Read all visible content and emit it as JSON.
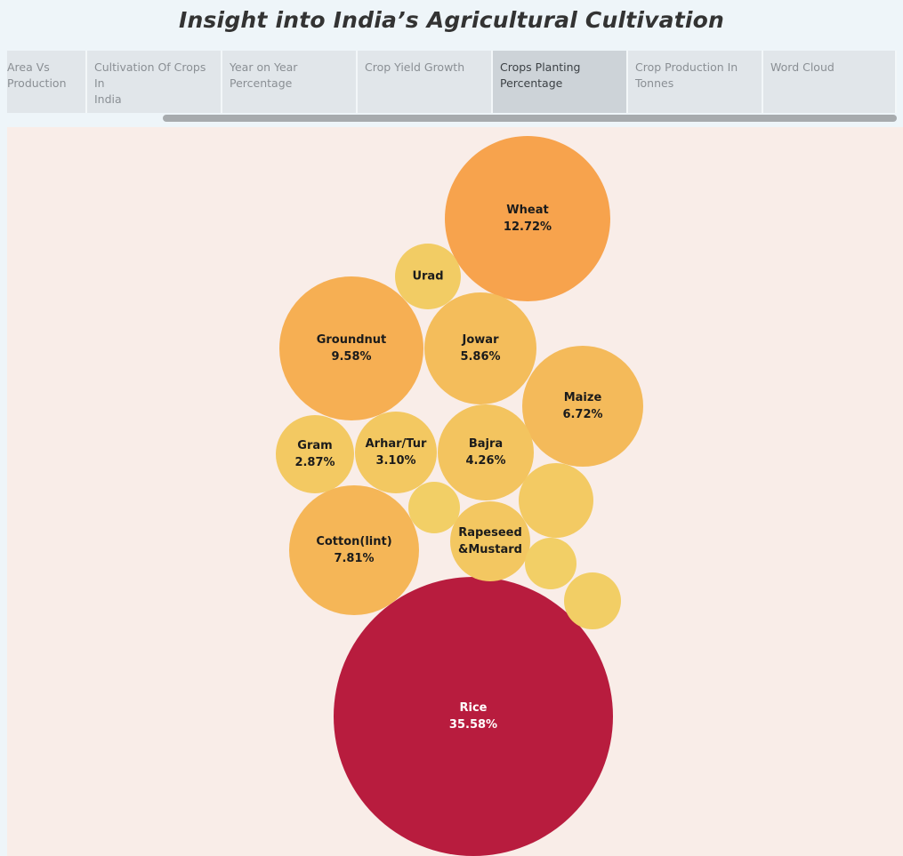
{
  "page": {
    "title": "Insight into India’s Agricultural Cultivation"
  },
  "tabs": [
    {
      "label": "Area Vs Production",
      "lines": [
        "Area Vs",
        "Production"
      ],
      "active": false
    },
    {
      "label": "Cultivation Of Crops In India",
      "lines": [
        "Cultivation Of Crops In",
        "India"
      ],
      "active": false
    },
    {
      "label": "Year on Year Percentage",
      "lines": [
        "Year on Year",
        "Percentage"
      ],
      "active": false
    },
    {
      "label": "Crop Yield Growth",
      "lines": [
        "Crop Yield Growth"
      ],
      "active": false
    },
    {
      "label": "Crops Planting Percentage",
      "lines": [
        "Crops Planting",
        "Percentage"
      ],
      "active": true
    },
    {
      "label": "Crop Production In Tonnes",
      "lines": [
        "Crop Production In",
        "Tonnes"
      ],
      "active": false
    },
    {
      "label": "Word Cloud",
      "lines": [
        "Word Cloud"
      ],
      "active": false
    }
  ],
  "chart_data": {
    "type": "bubble",
    "title": "",
    "color_scale": {
      "low": "#f2d066",
      "mid": "#f7a24c",
      "high": "#b81c3e"
    },
    "items": [
      {
        "name": "Rice",
        "value": 35.58,
        "label": "35.58%"
      },
      {
        "name": "Wheat",
        "value": 12.72,
        "label": "12.72%"
      },
      {
        "name": "Groundnut",
        "value": 9.58,
        "label": "9.58%"
      },
      {
        "name": "Cotton(lint)",
        "value": 7.81,
        "label": "7.81%"
      },
      {
        "name": "Maize",
        "value": 6.72,
        "label": "6.72%"
      },
      {
        "name": "Jowar",
        "value": 5.86,
        "label": "5.86%"
      },
      {
        "name": "Bajra",
        "value": 4.26,
        "label": "4.26%"
      },
      {
        "name": "Rapeseed &Mustard",
        "lines": [
          "Rapeseed",
          "&Mustard"
        ],
        "value": 3.3,
        "label": ""
      },
      {
        "name": "Arhar/Tur",
        "value": 3.1,
        "label": "3.10%"
      },
      {
        "name": "Gram",
        "value": 2.87,
        "label": "2.87%"
      },
      {
        "name": "",
        "value": 2.6,
        "label": ""
      },
      {
        "name": "Urad",
        "value": 2.0,
        "label": ""
      },
      {
        "name": "",
        "value": 1.5,
        "label": ""
      },
      {
        "name": "",
        "value": 1.2,
        "label": ""
      },
      {
        "name": "",
        "value": 1.2,
        "label": ""
      }
    ]
  }
}
